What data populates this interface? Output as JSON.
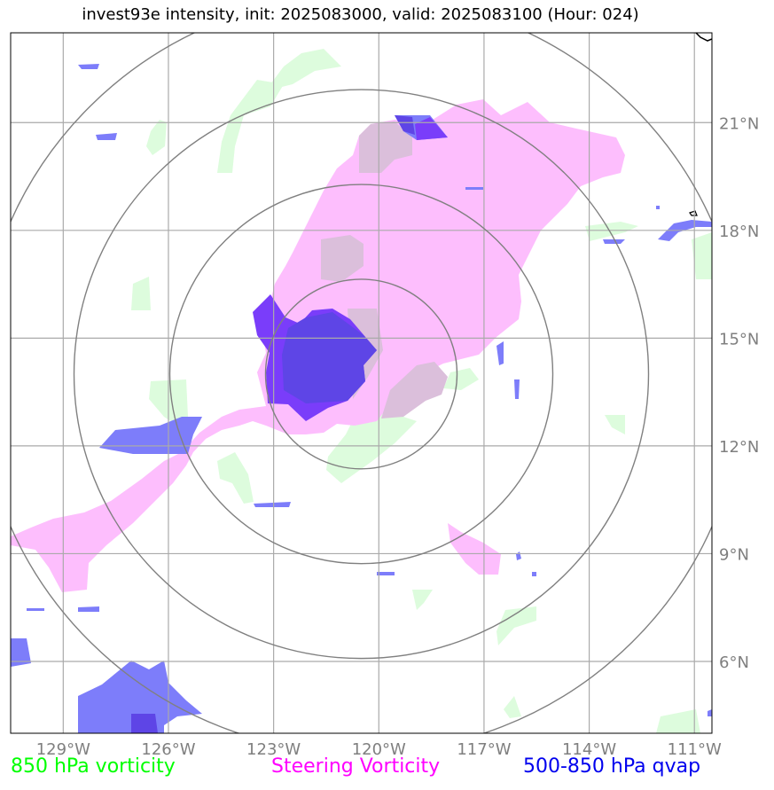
{
  "title": "invest93e intensity, init: 2025083000, valid: 2025083100 (Hour: 024)",
  "map": {
    "lon_ticks": [
      "129°W",
      "126°W",
      "123°W",
      "120°W",
      "117°W",
      "114°W",
      "111°W"
    ],
    "lat_ticks": [
      "21°N",
      "18°N",
      "15°N",
      "12°N",
      "9°N",
      "6°N"
    ],
    "lon_range": [
      -130.5,
      -110.5
    ],
    "lat_range": [
      4,
      23.5
    ],
    "center": {
      "lon": -120.5,
      "lat": 14
    },
    "range_rings": 4,
    "gridlines": true
  },
  "legend": [
    {
      "label": "850 hPa vorticity",
      "color": "#00ff00"
    },
    {
      "label": "Steering Vorticity",
      "color": "#ff00ff"
    },
    {
      "label": "500-850 hPa qvap",
      "color": "#0000ee"
    }
  ],
  "colors": {
    "vorticity": "#ddfcdd",
    "steering": "#fdbefd",
    "qvap": "#7d7dfa",
    "qvap_strong": "#7a3dfa",
    "overlap": "#dbbfdb",
    "grid": "#aaaaaa",
    "ring": "#808080"
  }
}
